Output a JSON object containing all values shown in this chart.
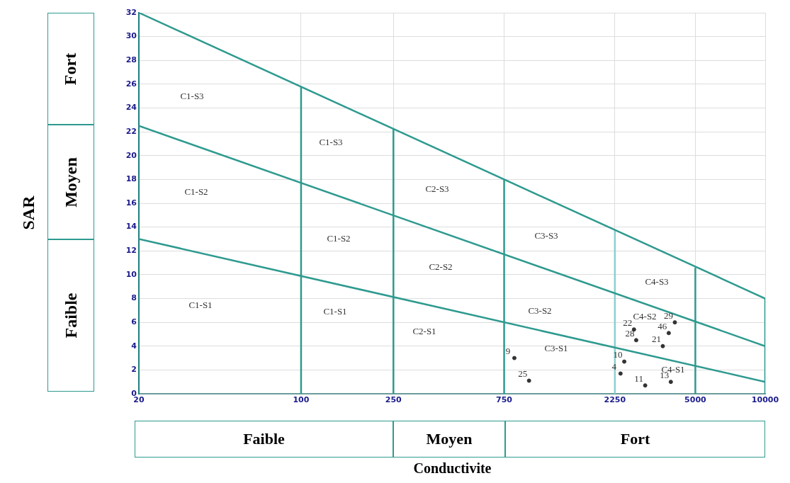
{
  "chart_data": {
    "type": "line",
    "xlabel": "Conductivite",
    "log": "x",
    "grid": true,
    "marker": "none",
    "xlim": [
      20,
      10000
    ],
    "xticks": [
      20,
      100,
      250,
      750,
      2250,
      5000,
      10000
    ],
    "ylim": [
      0,
      32
    ],
    "yticks": [
      0,
      2,
      4,
      6,
      8,
      10,
      12,
      14,
      16,
      18,
      20,
      22,
      24,
      26,
      28,
      30,
      32
    ],
    "series": [
      {
        "color": "#2e9a8f",
        "x": [
          20,
          10000
        ],
        "values": [
          32,
          8
        ]
      },
      {
        "color": "#2e9a8f",
        "x": [
          20,
          10000
        ],
        "values": [
          22.5,
          4
        ]
      },
      {
        "color": "#2e9a8f",
        "x": [
          20,
          10000
        ],
        "values": [
          13,
          1
        ]
      },
      {
        "color": "#2e9a8f",
        "x": [
          100,
          100
        ],
        "values": [
          0,
          25.8
        ]
      },
      {
        "color": "#2e9a8f",
        "x": [
          250,
          250
        ],
        "values": [
          0,
          22.2
        ]
      },
      {
        "color": "#2e9a8f",
        "x": [
          750,
          750
        ],
        "values": [
          0,
          18
        ]
      },
      {
        "color": "#8ccfcf",
        "x": [
          2250,
          2250
        ],
        "values": [
          0,
          13.7
        ]
      },
      {
        "color": "#2e9a8f",
        "x": [
          5000,
          5000
        ],
        "values": [
          0,
          10.6
        ]
      },
      {
        "color": "#2e9a8f",
        "x": [
          10000,
          10000
        ],
        "values": [
          0,
          8
        ]
      },
      {
        "type": "scatter",
        "marker": "circle",
        "color": "#333333",
        "x": [
          830,
          960,
          2470,
          2380,
          2720,
          2780,
          4080,
          3840,
          3620,
          3040,
          3920
        ],
        "values": [
          3,
          1.1,
          2.7,
          1.7,
          5.4,
          4.5,
          6,
          5.1,
          4,
          0.7,
          1
        ]
      }
    ],
    "annotations": [
      {
        "text": "9",
        "x": 830,
        "y": 3
      },
      {
        "text": "25",
        "x": 960,
        "y": 1.1
      },
      {
        "text": "10",
        "x": 2470,
        "y": 2.7
      },
      {
        "text": "4",
        "x": 2380,
        "y": 1.7
      },
      {
        "text": "22",
        "x": 2720,
        "y": 5.4
      },
      {
        "text": "28",
        "x": 2780,
        "y": 4.5
      },
      {
        "text": "29",
        "x": 4080,
        "y": 6
      },
      {
        "text": "46",
        "x": 3840,
        "y": 5.1
      },
      {
        "text": "21",
        "x": 3620,
        "y": 4
      },
      {
        "text": "11",
        "x": 3040,
        "y": 0.7
      },
      {
        "text": "13",
        "x": 3920,
        "y": 1
      },
      "C1-S3",
      "C1-S2",
      "C1-S1",
      "C1-S3",
      "C1-S2",
      "C1-S1",
      "C2-S3",
      "C2-S2",
      "C2-S1",
      "C3-S3",
      "C3-S2",
      "C3-S1",
      "C4-S3",
      "C4-S2",
      "C4-S1",
      "Fort",
      "Moyen",
      "Faible",
      "Faible",
      "Moyen",
      "Fort",
      "SAR"
    ]
  }
}
